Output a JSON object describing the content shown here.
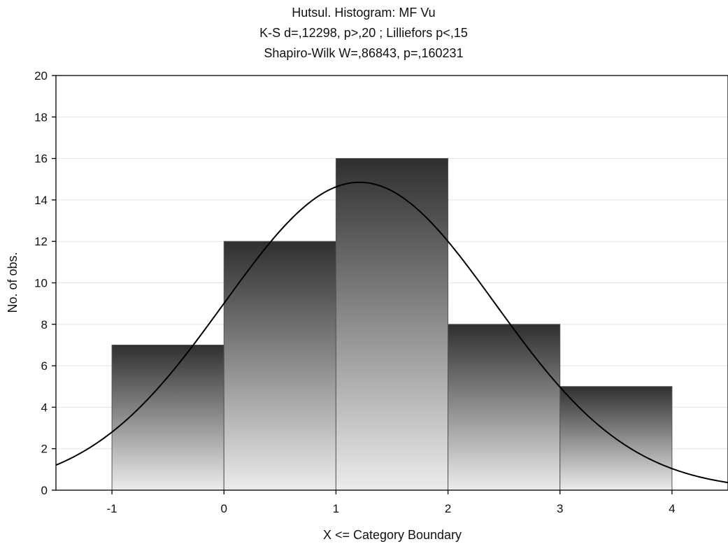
{
  "chart_data": {
    "type": "bar",
    "title_lines": [
      "Hutsul. Histogram: MF Vu",
      "K-S d=,12298, p>,20 ; Lilliefors p<,15",
      "Shapiro-Wilk W=,86843, p=,160231"
    ],
    "xlabel": "X <= Category Boundary",
    "ylabel": "No. of obs.",
    "xlim": [
      -1.5,
      4.5
    ],
    "ylim": [
      0,
      20
    ],
    "xticks": [
      "-1",
      "0",
      "1",
      "2",
      "3",
      "4"
    ],
    "yticks": [
      "0",
      "2",
      "4",
      "6",
      "8",
      "10",
      "12",
      "14",
      "16",
      "18",
      "20"
    ],
    "grid": true,
    "bins": [
      {
        "from": -1,
        "to": 0,
        "count": 7
      },
      {
        "from": 0,
        "to": 1,
        "count": 12
      },
      {
        "from": 1,
        "to": 2,
        "count": 16
      },
      {
        "from": 2,
        "to": 3,
        "count": 8
      },
      {
        "from": 3,
        "to": 4,
        "count": 5
      }
    ],
    "normal_curve": {
      "mean": 1.21,
      "sd": 1.21,
      "peak": 14.85
    }
  },
  "colors": {
    "bar_top": "#2f2f2f",
    "bar_bottom": "#ececec",
    "bar_edge": "#555555",
    "curve": "#000000",
    "grid": "#e3e3e3",
    "axis": "#000000"
  }
}
